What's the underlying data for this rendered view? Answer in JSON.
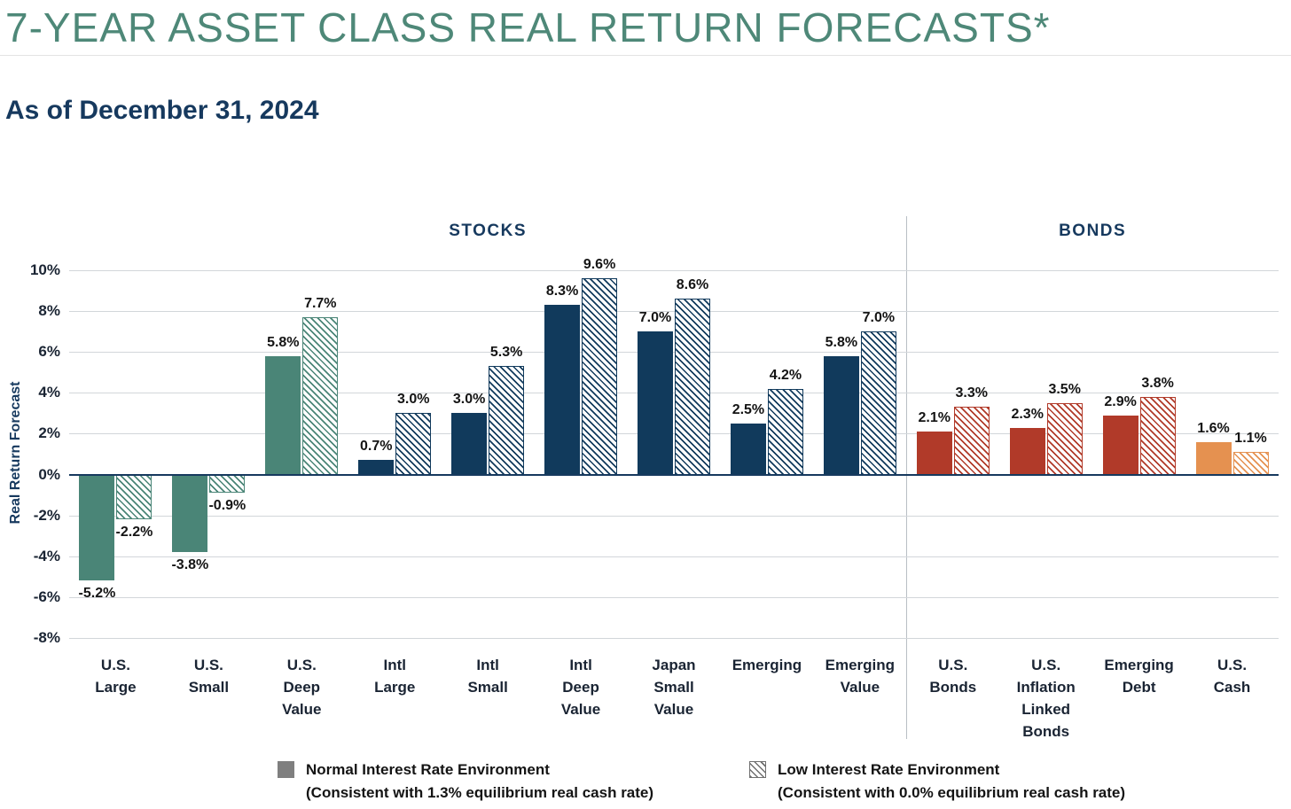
{
  "page": {
    "title": "7-YEAR ASSET CLASS REAL RETURN FORECASTS*",
    "subtitle": "As of December 31, 2024"
  },
  "sections": {
    "stocks": "STOCKS",
    "bonds": "BONDS"
  },
  "axis": {
    "ylabel": "Real Return Forecast",
    "ticks": [
      10,
      8,
      6,
      4,
      2,
      0,
      -2,
      -4,
      -6,
      -8
    ],
    "tick_suffix": "%"
  },
  "legend": [
    {
      "label": "Normal Interest Rate Environment",
      "sub": "(Consistent with 1.3% equilibrium real cash rate)",
      "style": "solid"
    },
    {
      "label": "Low Interest Rate Environment",
      "sub": "(Consistent with 0.0% equilibrium real cash rate)",
      "style": "hatched"
    }
  ],
  "colors": {
    "title": "#4E8878",
    "navy_text": "#16395E",
    "teal": "#4A8577",
    "navy": "#113A5C",
    "red": "#B13A29",
    "orange": "#E59150",
    "grid": "#d2d6da",
    "legend_gray": "#7f7f7f"
  },
  "chart_data": {
    "type": "bar",
    "title": "7-Year Asset Class Real Return Forecasts",
    "ylabel": "Real Return Forecast",
    "ylim": [
      -8,
      10
    ],
    "grid": true,
    "legend_position": "bottom",
    "categories": [
      "U.S. Large",
      "U.S. Small",
      "U.S. Deep Value",
      "Intl Large",
      "Intl Small",
      "Intl Deep Value",
      "Japan Small Value",
      "Emerging",
      "Emerging Value",
      "U.S. Bonds",
      "U.S. Inflation Linked Bonds",
      "Emerging Debt",
      "U.S. Cash"
    ],
    "category_label_lines": [
      [
        "U.S.",
        "Large"
      ],
      [
        "U.S.",
        "Small"
      ],
      [
        "U.S.",
        "Deep",
        "Value"
      ],
      [
        "Intl",
        "Large"
      ],
      [
        "Intl",
        "Small"
      ],
      [
        "Intl",
        "Deep",
        "Value"
      ],
      [
        "Japan",
        "Small",
        "Value"
      ],
      [
        "Emerging"
      ],
      [
        "Emerging",
        "Value"
      ],
      [
        "U.S.",
        "Bonds"
      ],
      [
        "U.S.",
        "Inflation",
        "Linked",
        "Bonds"
      ],
      [
        "Emerging",
        "Debt"
      ],
      [
        "U.S.",
        "Cash"
      ]
    ],
    "category_groups": [
      "stocks",
      "stocks",
      "stocks",
      "stocks",
      "stocks",
      "stocks",
      "stocks",
      "stocks",
      "stocks",
      "bonds",
      "bonds",
      "bonds",
      "bonds"
    ],
    "category_colors": [
      "#4A8577",
      "#4A8577",
      "#4A8577",
      "#113A5C",
      "#113A5C",
      "#113A5C",
      "#113A5C",
      "#113A5C",
      "#113A5C",
      "#B13A29",
      "#B13A29",
      "#B13A29",
      "#E59150"
    ],
    "series": [
      {
        "name": "Normal Interest Rate Environment (Consistent with 1.3% equilibrium real cash rate)",
        "style": "solid",
        "values": [
          -5.2,
          -3.8,
          5.8,
          0.7,
          3.0,
          8.3,
          7.0,
          2.5,
          5.8,
          2.1,
          2.3,
          2.9,
          1.6
        ]
      },
      {
        "name": "Low Interest Rate Environment (Consistent with 0.0% equilibrium real cash rate)",
        "style": "hatched",
        "values": [
          -2.2,
          -0.9,
          7.7,
          3.0,
          5.3,
          9.6,
          8.6,
          4.2,
          7.0,
          3.3,
          3.5,
          3.8,
          1.1
        ]
      }
    ]
  }
}
